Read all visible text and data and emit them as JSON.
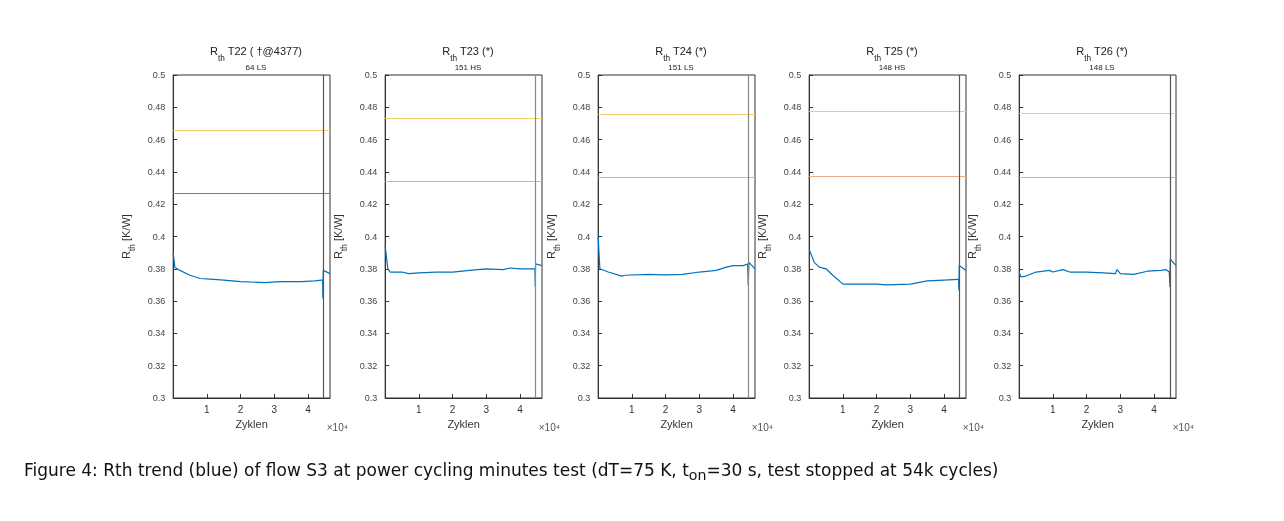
{
  "chart_data": [
    {
      "type": "line",
      "title": "R$_{th}$ T22 ( †@4377)",
      "subtitle": "64 LS",
      "xlabel": "Zyklen",
      "ylabel": "R$_{th}$ [K/W]",
      "annotations": [
        "×10⁴",
        "Figure 4: Rth trend (blue) of flow S3 at power cycling minutes test (dT=75 K, t$_{on}$=30 s, test stopped at 54k cycles)"
      ],
      "xlim": [
        0,
        4.65
      ],
      "xticks": [
        1,
        2,
        3,
        4
      ],
      "ylim": [
        0.3,
        0.5
      ],
      "yticks": [
        0.3,
        0.32,
        0.34,
        0.36,
        0.38,
        0.4,
        0.42,
        0.44,
        0.46,
        0.48,
        0.5
      ],
      "grid": false,
      "marker": "none",
      "line_style": "solid",
      "series": [
        {
          "color": "#0072bd",
          "x": [
            0,
            0.05,
            0.2,
            0.5,
            0.8,
            1.2,
            1.5,
            2,
            2.7,
            3.2,
            3.8,
            4.2,
            4.4,
            4.43,
            4.44,
            4.45,
            4.65
          ],
          "values": [
            0.39,
            0.381,
            0.379,
            0.376,
            0.374,
            0.3735,
            0.373,
            0.372,
            0.3715,
            0.372,
            0.372,
            0.3725,
            0.373,
            0.373,
            0.362,
            0.379,
            0.377
          ]
        }
      ],
      "ref_lines": [
        {
          "axis": "y",
          "value": 0.466,
          "color": "#f5cd6e"
        },
        {
          "axis": "y",
          "value": 0.427,
          "color": "#c8643c"
        },
        {
          "axis": "x",
          "value": 4.44,
          "color": "#555555"
        }
      ]
    },
    {
      "type": "line",
      "title": "R$_{th}$ T23 (*)",
      "subtitle": "151 HS",
      "xlabel": "Zyklen",
      "ylabel": "R$_{th}$ [K/W]",
      "annotations": [
        "×10⁴"
      ],
      "xlim": [
        0,
        4.65
      ],
      "xticks": [
        1,
        2,
        3,
        4
      ],
      "ylim": [
        0.3,
        0.5
      ],
      "yticks": [
        0.3,
        0.32,
        0.34,
        0.36,
        0.38,
        0.4,
        0.42,
        0.44,
        0.46,
        0.48,
        0.5
      ],
      "grid": false,
      "marker": "none",
      "line_style": "solid",
      "series": [
        {
          "color": "#0072bd",
          "x": [
            0,
            0.08,
            0.15,
            0.5,
            0.7,
            1,
            1.5,
            2,
            2.5,
            3,
            3.5,
            3.7,
            4,
            4.3,
            4.44,
            4.45,
            4.46,
            4.65
          ],
          "values": [
            0.394,
            0.38,
            0.378,
            0.378,
            0.377,
            0.3775,
            0.378,
            0.378,
            0.379,
            0.38,
            0.3795,
            0.3805,
            0.38,
            0.38,
            0.38,
            0.369,
            0.383,
            0.382
          ]
        }
      ],
      "ref_lines": [
        {
          "axis": "y",
          "value": 0.4735,
          "color": "#f5cd6e"
        },
        {
          "axis": "y",
          "value": 0.434,
          "color": "#f0a88c"
        },
        {
          "axis": "x",
          "value": 4.46,
          "color": "#888888"
        }
      ]
    },
    {
      "type": "line",
      "title": "R$_{th}$ T24 (*)",
      "subtitle": "151 LS",
      "xlabel": "Zyklen",
      "ylabel": "R$_{th}$ [K/W]",
      "annotations": [
        "×10⁴"
      ],
      "xlim": [
        0,
        4.65
      ],
      "xticks": [
        1,
        2,
        3,
        4
      ],
      "ylim": [
        0.3,
        0.5
      ],
      "yticks": [
        0.3,
        0.32,
        0.34,
        0.36,
        0.38,
        0.4,
        0.42,
        0.44,
        0.46,
        0.48,
        0.5
      ],
      "grid": false,
      "marker": "none",
      "line_style": "solid",
      "series": [
        {
          "color": "#0072bd",
          "x": [
            0,
            0.05,
            0.3,
            0.7,
            0.8,
            1.5,
            2,
            2.5,
            3,
            3.5,
            3.8,
            4,
            4.3,
            4.43,
            4.45,
            4.47,
            4.65
          ],
          "values": [
            0.4,
            0.38,
            0.378,
            0.3755,
            0.376,
            0.3765,
            0.3762,
            0.3765,
            0.378,
            0.379,
            0.381,
            0.382,
            0.382,
            0.383,
            0.37,
            0.384,
            0.38
          ]
        }
      ],
      "ref_lines": [
        {
          "axis": "y",
          "value": 0.4755,
          "color": "#f5cd6e"
        },
        {
          "axis": "y",
          "value": 0.4365,
          "color": "#f0a88c"
        },
        {
          "axis": "x",
          "value": 4.46,
          "color": "#888888"
        }
      ]
    },
    {
      "type": "line",
      "title": "R$_{th}$ T25 (*)",
      "subtitle": "148 HS",
      "xlabel": "Zyklen",
      "ylabel": "R$_{th}$ [K/W]",
      "annotations": [
        "×10⁴"
      ],
      "xlim": [
        0,
        4.65
      ],
      "xticks": [
        1,
        2,
        3,
        4
      ],
      "ylim": [
        0.3,
        0.5
      ],
      "yticks": [
        0.3,
        0.32,
        0.34,
        0.36,
        0.38,
        0.4,
        0.42,
        0.44,
        0.46,
        0.48,
        0.5
      ],
      "grid": false,
      "marker": "none",
      "line_style": "solid",
      "series": [
        {
          "color": "#0072bd",
          "x": [
            0,
            0.15,
            0.3,
            0.5,
            0.7,
            1,
            1.5,
            2,
            2.3,
            3,
            3.5,
            4,
            4.4,
            4.43,
            4.44,
            4.45,
            4.65
          ],
          "values": [
            0.392,
            0.384,
            0.381,
            0.38,
            0.376,
            0.3705,
            0.3705,
            0.3705,
            0.37,
            0.3705,
            0.3725,
            0.373,
            0.3735,
            0.3735,
            0.367,
            0.382,
            0.379
          ]
        }
      ],
      "ref_lines": [
        {
          "axis": "y",
          "value": 0.4775,
          "color": "#f5cd6e"
        },
        {
          "axis": "y",
          "value": 0.4375,
          "color": "#f0a88c"
        },
        {
          "axis": "x",
          "value": 4.44,
          "color": "#555555"
        }
      ]
    },
    {
      "type": "line",
      "title": "R$_{th}$ T26 (*)",
      "subtitle": "148 LS",
      "xlabel": "Zyklen",
      "ylabel": "R$_{th}$ [K/W]",
      "annotations": [
        "×10⁴"
      ],
      "xlim": [
        0,
        4.65
      ],
      "xticks": [
        1,
        2,
        3,
        4
      ],
      "ylim": [
        0.3,
        0.5
      ],
      "yticks": [
        0.3,
        0.32,
        0.34,
        0.36,
        0.38,
        0.4,
        0.42,
        0.44,
        0.46,
        0.48,
        0.5
      ],
      "grid": false,
      "marker": "none",
      "line_style": "solid",
      "series": [
        {
          "color": "#0072bd",
          "x": [
            0,
            0.05,
            0.2,
            0.5,
            0.9,
            1,
            1.3,
            1.5,
            2,
            2.5,
            2.85,
            2.9,
            3,
            3.4,
            3.8,
            4.2,
            4.35,
            4.45,
            4.47,
            4.48,
            4.65
          ],
          "values": [
            0.378,
            0.375,
            0.3755,
            0.378,
            0.379,
            0.378,
            0.3795,
            0.378,
            0.378,
            0.3775,
            0.377,
            0.3795,
            0.377,
            0.3765,
            0.3785,
            0.379,
            0.3795,
            0.378,
            0.369,
            0.386,
            0.382
          ]
        }
      ],
      "ref_lines": [
        {
          "axis": "y",
          "value": 0.4765,
          "color": "#f5cd6e"
        },
        {
          "axis": "y",
          "value": 0.4365,
          "color": "#f0a88c"
        },
        {
          "axis": "x",
          "value": 4.47,
          "color": "#555555"
        }
      ]
    }
  ]
}
